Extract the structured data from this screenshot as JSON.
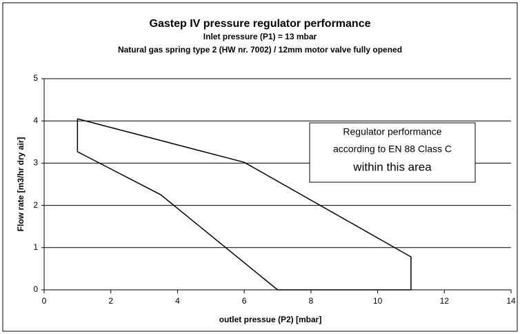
{
  "chart_data": {
    "type": "line",
    "title": "Gastep IV pressure regulator performance",
    "subtitle": [
      "Inlet pressure (P1) = 13 mbar",
      "Natural gas spring type 2 (HW nr. 7002) / 12mm motor valve fully opened"
    ],
    "x_label": "outlet pressue (P2) [mbar]",
    "y_label": "Flow rate [m3/hr dry air]",
    "annotation": [
      "Regulator performance",
      "according to EN 88 Class C",
      "within this area"
    ],
    "x": [
      1,
      6,
      11,
      11,
      7,
      3.5,
      1,
      1
    ],
    "series": [
      {
        "color": "#000000",
        "values": [
          4.05,
          3.02,
          0.78,
          0,
          0,
          2.25,
          3.27,
          4.05
        ]
      }
    ],
    "xlim": [
      0,
      14
    ],
    "xticks": [
      0,
      2,
      4,
      6,
      8,
      10,
      12,
      14
    ],
    "ylim": [
      0,
      5
    ],
    "yticks": [
      0,
      1,
      2,
      3,
      4,
      5
    ],
    "grid": true
  }
}
